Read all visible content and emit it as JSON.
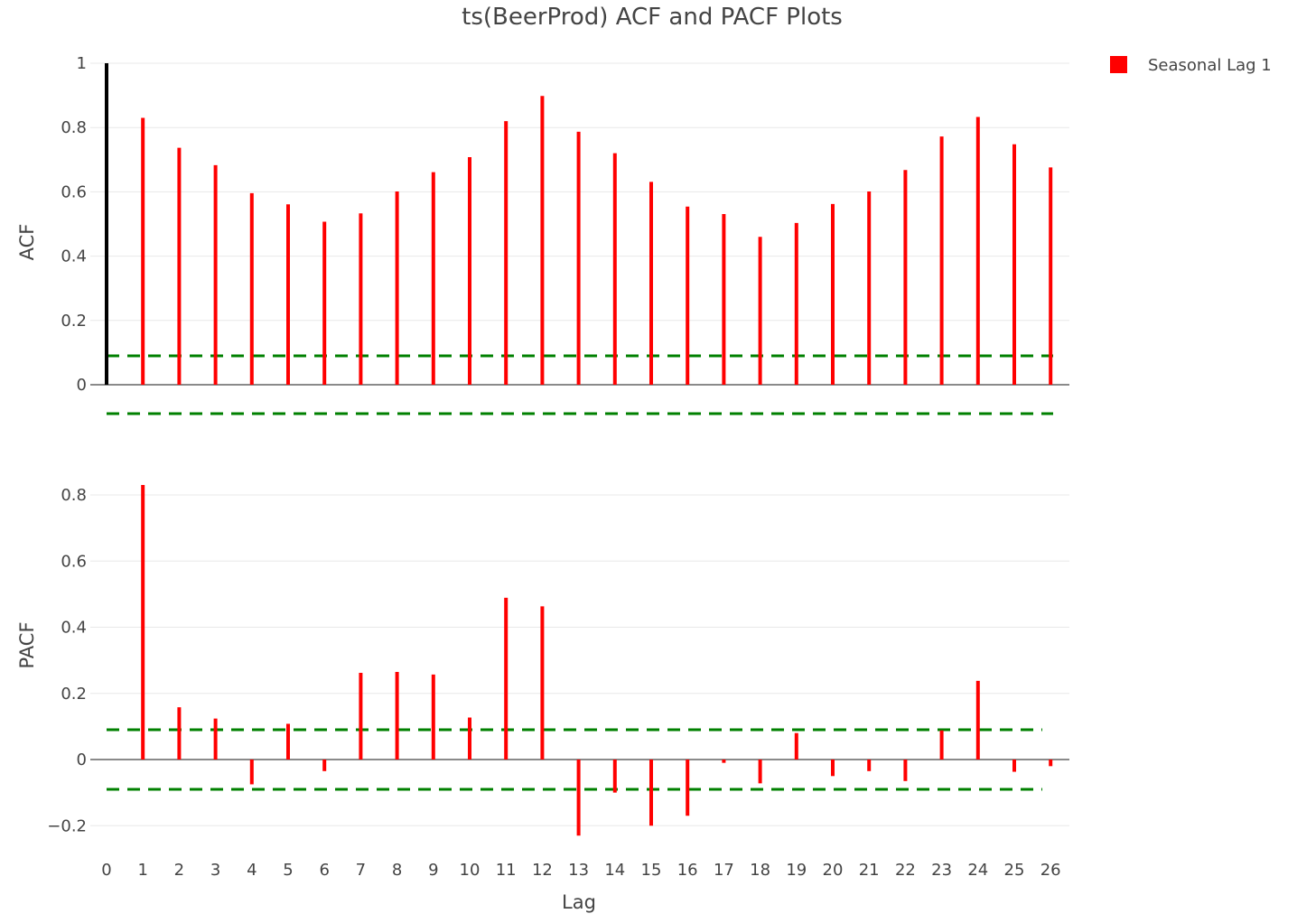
{
  "chart_data": {
    "type": "bar",
    "title": "ts(BeerProd) ACF and PACF Plots",
    "xlabel": "Lag",
    "x_ticks": [
      0,
      1,
      2,
      3,
      4,
      5,
      6,
      7,
      8,
      9,
      10,
      11,
      12,
      13,
      14,
      15,
      16,
      17,
      18,
      19,
      20,
      21,
      22,
      23,
      24,
      25,
      26
    ],
    "legend": {
      "entries": [
        "Seasonal Lag 1"
      ],
      "placement": "top-right"
    },
    "colors": {
      "bars": "#ff0000",
      "lag0": "#000000",
      "confidence": "#008000"
    },
    "grid": true,
    "panels": [
      {
        "ylabel": "ACF",
        "ylim": [
          -0.1,
          1.0
        ],
        "y_ticks": [
          0,
          0.2,
          0.4,
          0.6,
          0.8,
          1
        ],
        "y_tick_labels": [
          "0",
          "0.2",
          "0.4",
          "0.6",
          "0.8",
          "1"
        ],
        "confidence": 0.09,
        "lag0": 1.0,
        "series": [
          {
            "name": "Seasonal Lag 1",
            "lags": [
              1,
              2,
              3,
              4,
              5,
              6,
              7,
              8,
              9,
              10,
              11,
              12,
              13,
              14,
              15,
              16,
              17,
              18,
              19,
              20,
              21,
              22,
              23,
              24,
              25,
              26
            ],
            "values": [
              0.83,
              0.737,
              0.683,
              0.596,
              0.561,
              0.507,
              0.533,
              0.601,
              0.661,
              0.708,
              0.82,
              0.898,
              0.787,
              0.72,
              0.631,
              0.554,
              0.531,
              0.46,
              0.503,
              0.562,
              0.601,
              0.668,
              0.772,
              0.833,
              0.748,
              0.676
            ]
          }
        ]
      },
      {
        "ylabel": "PACF",
        "ylim": [
          -0.24,
          0.84
        ],
        "y_ticks": [
          -0.2,
          0,
          0.2,
          0.4,
          0.6,
          0.8
        ],
        "y_tick_labels": [
          "−0.2",
          "0",
          "0.2",
          "0.4",
          "0.6",
          "0.8"
        ],
        "confidence": 0.09,
        "series": [
          {
            "name": "Seasonal Lag 1",
            "lags": [
              1,
              2,
              3,
              4,
              5,
              6,
              7,
              8,
              9,
              10,
              11,
              12,
              13,
              14,
              15,
              16,
              17,
              18,
              19,
              20,
              21,
              22,
              23,
              24,
              25,
              26
            ],
            "values": [
              0.83,
              0.158,
              0.124,
              -0.075,
              0.108,
              -0.035,
              0.262,
              0.265,
              0.257,
              0.127,
              0.489,
              0.463,
              -0.23,
              -0.1,
              -0.2,
              -0.17,
              -0.01,
              -0.072,
              0.08,
              -0.05,
              -0.035,
              -0.065,
              0.088,
              0.238,
              -0.037,
              -0.02
            ]
          }
        ]
      }
    ]
  }
}
